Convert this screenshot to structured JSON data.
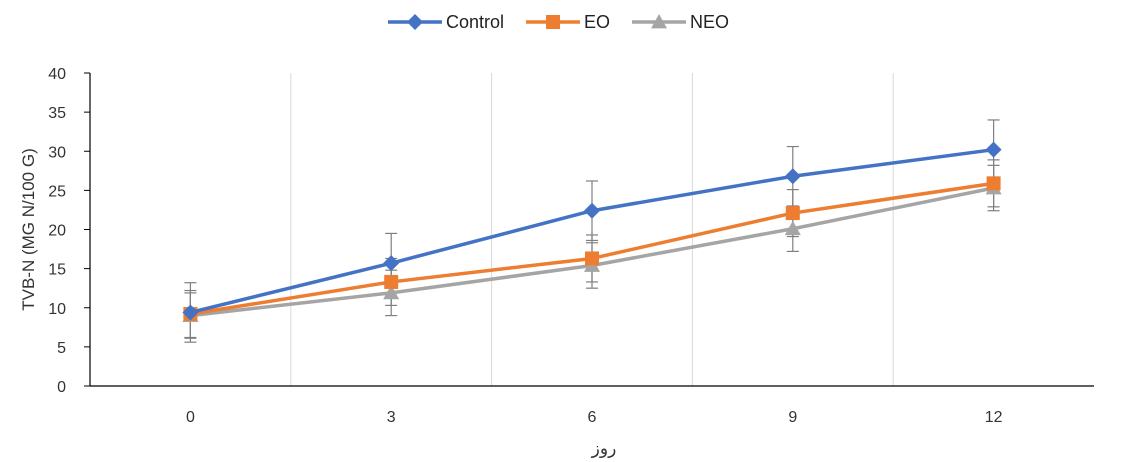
{
  "chart_data": {
    "type": "line",
    "categories": [
      "0",
      "3",
      "6",
      "9",
      "12"
    ],
    "series": [
      {
        "name": "Control",
        "values": [
          9.4,
          15.7,
          22.4,
          26.8,
          30.2
        ],
        "errors": [
          3.8,
          3.8,
          3.8,
          3.8,
          3.8
        ],
        "color": "#4472C4",
        "marker": "diamond"
      },
      {
        "name": "EO",
        "values": [
          9.2,
          13.3,
          16.3,
          22.1,
          25.9
        ],
        "errors": [
          3.0,
          3.0,
          3.0,
          3.0,
          3.0
        ],
        "color": "#ED7D31",
        "marker": "square"
      },
      {
        "name": "NEO",
        "values": [
          9.0,
          11.9,
          15.4,
          20.1,
          25.3
        ],
        "errors": [
          2.9,
          2.9,
          2.9,
          2.9,
          2.9
        ],
        "color": "#A5A5A5",
        "marker": "triangle"
      }
    ],
    "xlabel": "روز",
    "ylabel": "TVB-N (MG N/100 G)",
    "ylim": [
      0,
      40
    ],
    "yticks": [
      "0",
      "5",
      "10",
      "15",
      "20",
      "25",
      "30",
      "35",
      "40"
    ],
    "grid": "vertical",
    "legend": "top-center"
  }
}
